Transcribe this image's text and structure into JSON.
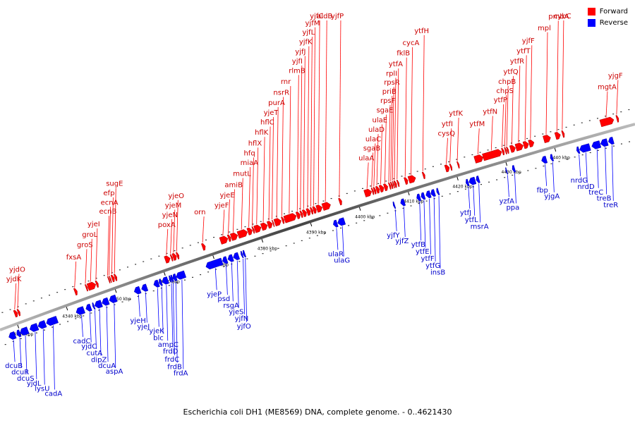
{
  "legend": {
    "items": [
      {
        "label": "Forward",
        "color": "#ff0000"
      },
      {
        "label": "Reverse",
        "color": "#0000ff"
      }
    ]
  },
  "caption": "Escherichia coli DH1 (ME8569) DNA, complete genome. - 0..4621430",
  "colors": {
    "forward": "#ff0000",
    "reverse": "#0000ff",
    "axis": "#555555"
  },
  "ticks": [
    {
      "kbp": 4330,
      "label": "4330 kbp"
    },
    {
      "kbp": 4340,
      "label": "4340 kbp"
    },
    {
      "kbp": 4350,
      "label": "4350 kbp"
    },
    {
      "kbp": 4360,
      "label": "4360 kbp"
    },
    {
      "kbp": 4370,
      "label": "4370 kbp"
    },
    {
      "kbp": 4380,
      "label": "4380 kbp"
    },
    {
      "kbp": 4390,
      "label": "4390 kbp"
    },
    {
      "kbp": 4400,
      "label": "4400 kbp"
    },
    {
      "kbp": 4410,
      "label": "4410 kbp"
    },
    {
      "kbp": 4420,
      "label": "4420 kbp"
    },
    {
      "kbp": 4430,
      "label": "4430 kbp"
    },
    {
      "kbp": 4440,
      "label": "4440 kbp"
    }
  ],
  "forward_genes": [
    {
      "name": "yjdK",
      "start": 4330.2,
      "end": 4330.8
    },
    {
      "name": "yjdO",
      "start": 4330.9,
      "end": 4331.3
    },
    {
      "name": "fxsA",
      "start": 4342.5,
      "end": 4343.0
    },
    {
      "name": "groS",
      "start": 4344.8,
      "end": 4345.1
    },
    {
      "name": "groL",
      "start": 4345.2,
      "end": 4346.8
    },
    {
      "name": "yjeI",
      "start": 4346.9,
      "end": 4347.3
    },
    {
      "name": "ecnB",
      "start": 4349.4,
      "end": 4349.6
    },
    {
      "name": "ecnA",
      "start": 4349.7,
      "end": 4349.9
    },
    {
      "name": "efp",
      "start": 4350.1,
      "end": 4350.6
    },
    {
      "name": "sugE",
      "start": 4350.7,
      "end": 4351.1
    },
    {
      "name": "poxA",
      "start": 4361.0,
      "end": 4362.0
    },
    {
      "name": "yjeN",
      "start": 4362.2,
      "end": 4362.5
    },
    {
      "name": "yjeM",
      "start": 4362.6,
      "end": 4363.3
    },
    {
      "name": "yjeO",
      "start": 4363.4,
      "end": 4363.8
    },
    {
      "name": "orn",
      "start": 4368.6,
      "end": 4369.2
    },
    {
      "name": "yjeF",
      "start": 4372.3,
      "end": 4373.8
    },
    {
      "name": "yjeE",
      "start": 4373.9,
      "end": 4374.4
    },
    {
      "name": "amiB",
      "start": 4374.5,
      "end": 4375.8
    },
    {
      "name": "mutL",
      "start": 4375.9,
      "end": 4377.8
    },
    {
      "name": "miaA",
      "start": 4377.9,
      "end": 4378.8
    },
    {
      "name": "hfq",
      "start": 4378.9,
      "end": 4379.2
    },
    {
      "name": "hflX",
      "start": 4379.3,
      "end": 4380.6
    },
    {
      "name": "hflK",
      "start": 4380.7,
      "end": 4381.9
    },
    {
      "name": "hflC",
      "start": 4382.0,
      "end": 4382.9
    },
    {
      "name": "yjeT",
      "start": 4383.0,
      "end": 4383.2
    },
    {
      "name": "purA",
      "start": 4383.4,
      "end": 4384.7
    },
    {
      "name": "nsrR",
      "start": 4384.9,
      "end": 4385.3
    },
    {
      "name": "rnr",
      "start": 4385.4,
      "end": 4387.8
    },
    {
      "name": "rlmB",
      "start": 4387.9,
      "end": 4388.6
    },
    {
      "name": "yjfI",
      "start": 4388.7,
      "end": 4389.1
    },
    {
      "name": "yjfJ",
      "start": 4389.2,
      "end": 4389.9
    },
    {
      "name": "yjfK",
      "start": 4390.0,
      "end": 4390.7
    },
    {
      "name": "yjfL",
      "start": 4390.8,
      "end": 4391.2
    },
    {
      "name": "yjfM",
      "start": 4391.3,
      "end": 4391.9
    },
    {
      "name": "yjfC",
      "start": 4392.0,
      "end": 4393.1
    },
    {
      "name": "aidB",
      "start": 4393.2,
      "end": 4394.8
    },
    {
      "name": "yjfP",
      "start": 4396.6,
      "end": 4397.1
    },
    {
      "name": "ulaA",
      "start": 4401.8,
      "end": 4403.2
    },
    {
      "name": "sgaB",
      "start": 4403.3,
      "end": 4403.6
    },
    {
      "name": "ulaC",
      "start": 4403.7,
      "end": 4404.1
    },
    {
      "name": "ulaD",
      "start": 4404.2,
      "end": 4404.8
    },
    {
      "name": "ulaE",
      "start": 4404.9,
      "end": 4405.7
    },
    {
      "name": "sgaE",
      "start": 4405.8,
      "end": 4406.5
    },
    {
      "name": "rpsF",
      "start": 4406.8,
      "end": 4407.1
    },
    {
      "name": "priB",
      "start": 4407.2,
      "end": 4407.5
    },
    {
      "name": "rpsR",
      "start": 4407.6,
      "end": 4407.8
    },
    {
      "name": "rplI",
      "start": 4407.9,
      "end": 4408.3
    },
    {
      "name": "ytfA",
      "start": 4408.5,
      "end": 4408.8
    },
    {
      "name": "fklB",
      "start": 4410.0,
      "end": 4410.6
    },
    {
      "name": "cycA",
      "start": 4410.8,
      "end": 4412.2
    },
    {
      "name": "ytfH",
      "start": 4413.7,
      "end": 4414.1
    },
    {
      "name": "cysQ",
      "start": 4418.3,
      "end": 4419.1
    },
    {
      "name": "ytfI",
      "start": 4419.3,
      "end": 4419.6
    },
    {
      "name": "ytfK",
      "start": 4420.8,
      "end": 4421.1
    },
    {
      "name": "ytfM",
      "start": 4424.3,
      "end": 4426.0
    },
    {
      "name": "ytfN",
      "start": 4426.0,
      "end": 4429.8
    },
    {
      "name": "ytfP",
      "start": 4429.9,
      "end": 4430.3
    },
    {
      "name": "chpS",
      "start": 4430.5,
      "end": 4430.8
    },
    {
      "name": "chpB",
      "start": 4430.9,
      "end": 4431.2
    },
    {
      "name": "ytfQ",
      "start": 4431.6,
      "end": 4432.6
    },
    {
      "name": "ytfR",
      "start": 4432.7,
      "end": 4434.2
    },
    {
      "name": "ytfT",
      "start": 4434.3,
      "end": 4435.3
    },
    {
      "name": "yjfF",
      "start": 4435.4,
      "end": 4436.4
    },
    {
      "name": "mpl",
      "start": 4438.4,
      "end": 4439.8
    },
    {
      "name": "pmbA",
      "start": 4440.8,
      "end": 4441.8
    },
    {
      "name": "cybC",
      "start": 4442.2,
      "end": 4442.6
    },
    {
      "name": "mgtA",
      "start": 4450.0,
      "end": 4452.7
    },
    {
      "name": "yjgF",
      "start": 4453.3,
      "end": 4453.7
    }
  ],
  "reverse_genes": [
    {
      "name": "dcuB",
      "start": 4327.6,
      "end": 4328.9
    },
    {
      "name": "dcuR",
      "start": 4329.2,
      "end": 4329.9
    },
    {
      "name": "dcuS",
      "start": 4329.9,
      "end": 4331.5
    },
    {
      "name": "yjdL",
      "start": 4331.9,
      "end": 4333.5
    },
    {
      "name": "lysU",
      "start": 4333.6,
      "end": 4335.1
    },
    {
      "name": "cadA",
      "start": 4335.3,
      "end": 4337.5
    },
    {
      "name": "cadC",
      "start": 4341.4,
      "end": 4343.0
    },
    {
      "name": "yjdC",
      "start": 4343.4,
      "end": 4344.4
    },
    {
      "name": "cutA",
      "start": 4344.8,
      "end": 4345.1
    },
    {
      "name": "dipZ",
      "start": 4345.2,
      "end": 4346.6
    },
    {
      "name": "dcuA",
      "start": 4346.7,
      "end": 4348.0
    },
    {
      "name": "aspA",
      "start": 4348.2,
      "end": 4349.6
    },
    {
      "name": "yjeH",
      "start": 4353.3,
      "end": 4354.5
    },
    {
      "name": "yjeJ",
      "start": 4354.8,
      "end": 4355.9
    },
    {
      "name": "yjeK",
      "start": 4357.3,
      "end": 4358.3
    },
    {
      "name": "blc",
      "start": 4358.4,
      "end": 4358.9
    },
    {
      "name": "ampC",
      "start": 4359.0,
      "end": 4360.2
    },
    {
      "name": "frdD",
      "start": 4360.5,
      "end": 4360.8
    },
    {
      "name": "frdC",
      "start": 4360.8,
      "end": 4361.2
    },
    {
      "name": "frdB",
      "start": 4361.2,
      "end": 4361.9
    },
    {
      "name": "frdA",
      "start": 4361.9,
      "end": 4363.7
    },
    {
      "name": "yjeP",
      "start": 4368.0,
      "end": 4371.3
    },
    {
      "name": "psd",
      "start": 4371.4,
      "end": 4372.3
    },
    {
      "name": "rsgA",
      "start": 4372.5,
      "end": 4373.5
    },
    {
      "name": "yjeS",
      "start": 4373.6,
      "end": 4374.7
    },
    {
      "name": "yjfN",
      "start": 4375.2,
      "end": 4375.5
    },
    {
      "name": "yjfO",
      "start": 4375.6,
      "end": 4376.0
    },
    {
      "name": "ulaR",
      "start": 4394.1,
      "end": 4394.9
    },
    {
      "name": "ulaG",
      "start": 4395.0,
      "end": 4396.4
    },
    {
      "name": "yjfY",
      "start": 4406.4,
      "end": 4406.7
    },
    {
      "name": "yjfZ",
      "start": 4407.9,
      "end": 4408.7
    },
    {
      "name": "ytfB",
      "start": 4411.2,
      "end": 4411.9
    },
    {
      "name": "ytfE",
      "start": 4412.1,
      "end": 4412.8
    },
    {
      "name": "ytfF",
      "start": 4413.1,
      "end": 4414.0
    },
    {
      "name": "ytfG",
      "start": 4414.1,
      "end": 4414.9
    },
    {
      "name": "insB",
      "start": 4415.3,
      "end": 4415.7
    },
    {
      "name": "ytfJ",
      "start": 4421.3,
      "end": 4421.8
    },
    {
      "name": "ytfL",
      "start": 4421.9,
      "end": 4423.2
    },
    {
      "name": "msrA",
      "start": 4423.4,
      "end": 4424.0
    },
    {
      "name": "yzfA",
      "start": 4429.5,
      "end": 4429.7
    },
    {
      "name": "ppa",
      "start": 4430.8,
      "end": 4431.3
    },
    {
      "name": "fbp",
      "start": 4436.8,
      "end": 4437.8
    },
    {
      "name": "yjgA",
      "start": 4438.6,
      "end": 4439.1
    },
    {
      "name": "nrdG",
      "start": 4444.0,
      "end": 4444.5
    },
    {
      "name": "nrdD",
      "start": 4444.6,
      "end": 4446.7
    },
    {
      "name": "treC",
      "start": 4447.1,
      "end": 4448.8
    },
    {
      "name": "treB",
      "start": 4448.9,
      "end": 4450.3
    },
    {
      "name": "treR",
      "start": 4450.5,
      "end": 4451.5
    }
  ]
}
